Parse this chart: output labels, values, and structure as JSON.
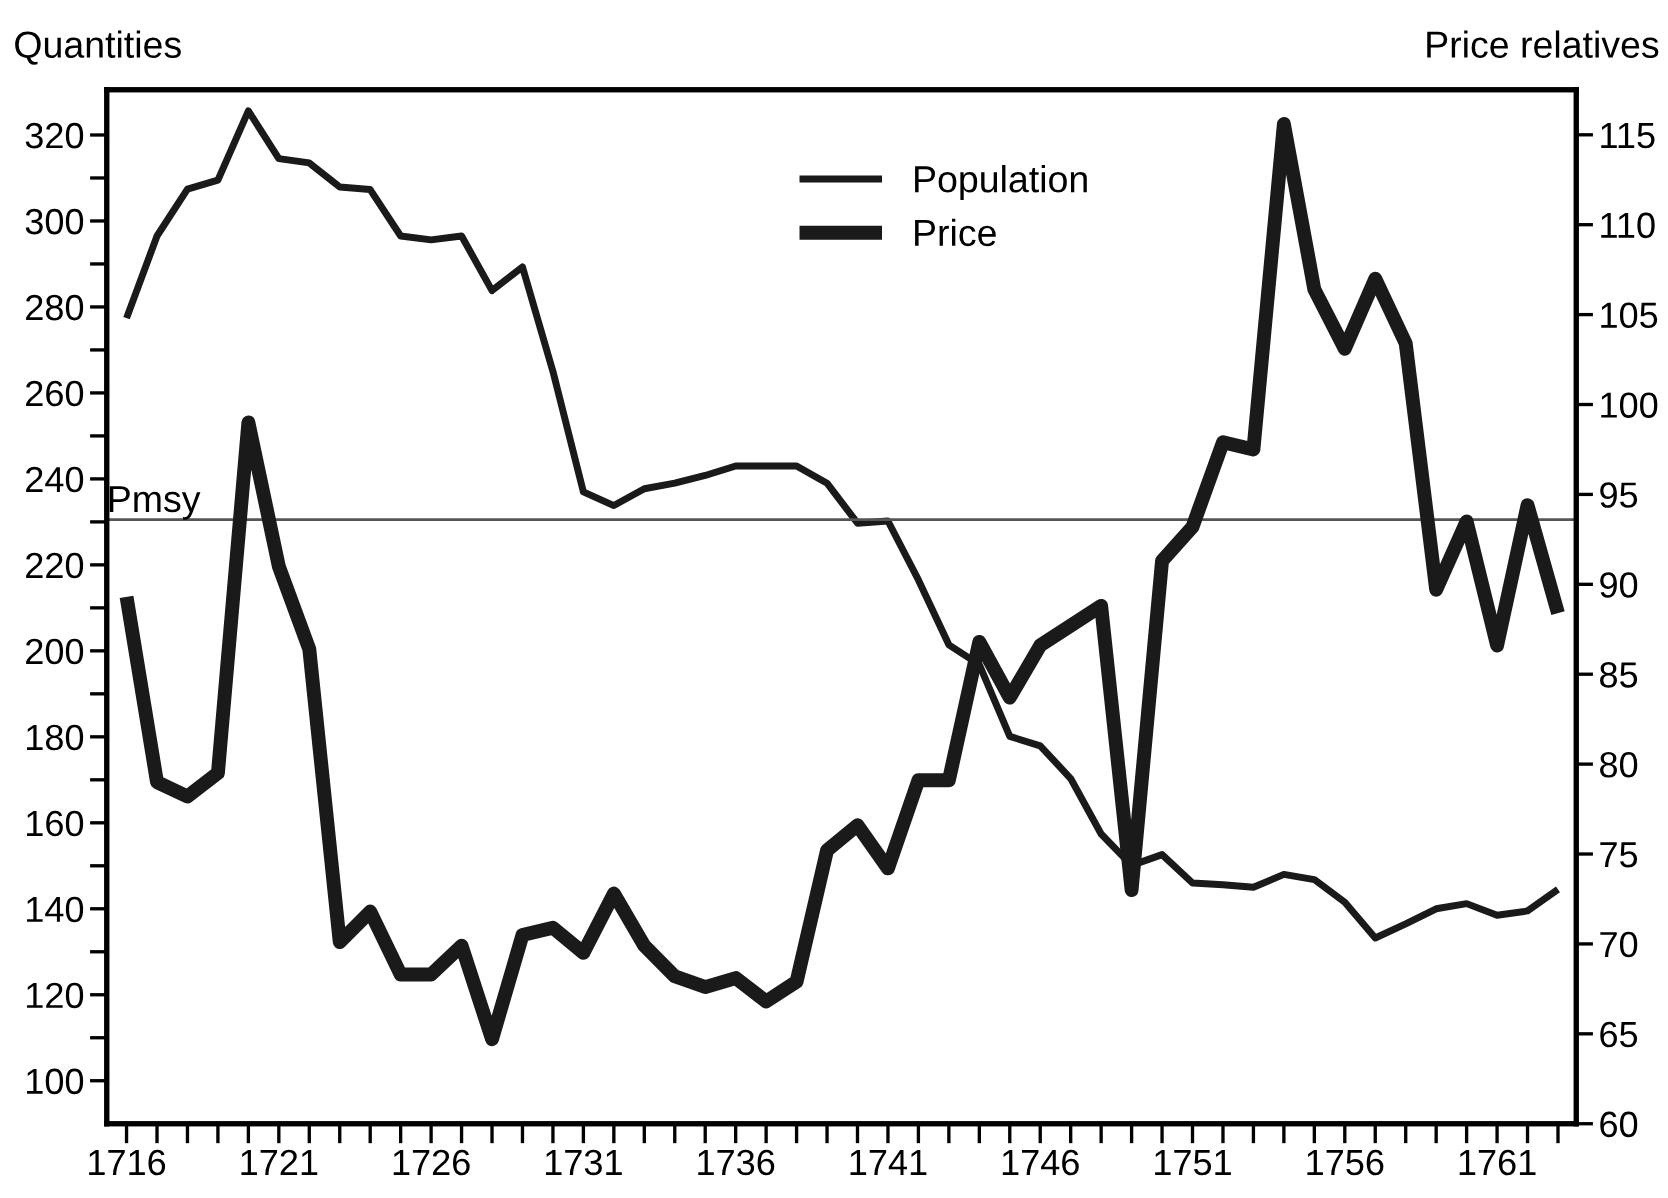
{
  "chart_data": {
    "type": "line",
    "ylabel": "Quantities",
    "y2label": "Price relatives",
    "x": [
      1716,
      1717,
      1718,
      1719,
      1720,
      1721,
      1722,
      1723,
      1724,
      1725,
      1726,
      1727,
      1728,
      1729,
      1730,
      1731,
      1732,
      1733,
      1734,
      1735,
      1736,
      1737,
      1738,
      1739,
      1740,
      1741,
      1742,
      1743,
      1744,
      1745,
      1746,
      1747,
      1748,
      1749,
      1750,
      1751,
      1752,
      1753,
      1754,
      1755,
      1756,
      1757,
      1758,
      1759,
      1760,
      1761,
      1762,
      1763
    ],
    "series": [
      {
        "name": "Population",
        "color": "#1a1a1a",
        "values": [
          277.4,
          296.5,
          307.4,
          309.5,
          325.6,
          314.5,
          313.5,
          307.9,
          307.3,
          296.5,
          295.6,
          296.5,
          283.8,
          289.3,
          265,
          237,
          233.8,
          237.7,
          239,
          240.8,
          243,
          243,
          243,
          239,
          229.7,
          230.2,
          216.5,
          201.4,
          196.8,
          180.1,
          177.9,
          170.3,
          157.4,
          150.1,
          152.6,
          146,
          145.6,
          145,
          148,
          146.8,
          141.5,
          133.2,
          136.5,
          140,
          141.2,
          138.5,
          139.5,
          144.5
        ]
      },
      {
        "name": "Price",
        "color": "#1a1a1a",
        "axis": "y2",
        "values": [
          89.3,
          79.0,
          78.2,
          79.5,
          99.0,
          91.0,
          86.4,
          70.1,
          71.8,
          68.3,
          68.3,
          69.9,
          64.7,
          70.5,
          70.9,
          69.5,
          72.8,
          69.9,
          68.2,
          67.6,
          68.1,
          66.8,
          67.9,
          75.2,
          76.6,
          74.2,
          79.1,
          79.1,
          86.8,
          83.7,
          86.6,
          87.7,
          88.8,
          73.0,
          91.3,
          93.2,
          97.9,
          97.5,
          115.6,
          106.4,
          103.1,
          107.0,
          103.4,
          89.7,
          93.5,
          86.6,
          94.4,
          88.4
        ]
      }
    ],
    "xlim": [
      1715.35,
      1763.6
    ],
    "xticks": [
      1716,
      {
        "value": 1717,
        "label": null
      },
      {
        "value": 1718,
        "label": null
      },
      {
        "value": 1719,
        "label": null
      },
      {
        "value": 1720,
        "label": null
      },
      1721,
      {
        "value": 1722,
        "label": null
      },
      {
        "value": 1723,
        "label": null
      },
      {
        "value": 1724,
        "label": null
      },
      {
        "value": 1725,
        "label": null
      },
      1726,
      {
        "value": 1727,
        "label": null
      },
      {
        "value": 1728,
        "label": null
      },
      {
        "value": 1729,
        "label": null
      },
      {
        "value": 1730,
        "label": null
      },
      1731,
      {
        "value": 1732,
        "label": null
      },
      {
        "value": 1733,
        "label": null
      },
      {
        "value": 1734,
        "label": null
      },
      {
        "value": 1735,
        "label": null
      },
      1736,
      {
        "value": 1737,
        "label": null
      },
      {
        "value": 1738,
        "label": null
      },
      {
        "value": 1739,
        "label": null
      },
      {
        "value": 1740,
        "label": null
      },
      1741,
      {
        "value": 1742,
        "label": null
      },
      {
        "value": 1743,
        "label": null
      },
      {
        "value": 1744,
        "label": null
      },
      {
        "value": 1745,
        "label": null
      },
      1746,
      {
        "value": 1747,
        "label": null
      },
      {
        "value": 1748,
        "label": null
      },
      {
        "value": 1749,
        "label": null
      },
      {
        "value": 1750,
        "label": null
      },
      1751,
      {
        "value": 1752,
        "label": null
      },
      {
        "value": 1753,
        "label": null
      },
      {
        "value": 1754,
        "label": null
      },
      {
        "value": 1755,
        "label": null
      },
      1756,
      {
        "value": 1757,
        "label": null
      },
      {
        "value": 1758,
        "label": null
      },
      {
        "value": 1759,
        "label": null
      },
      {
        "value": 1760,
        "label": null
      },
      1761,
      {
        "value": 1762,
        "label": null
      },
      {
        "value": 1763,
        "label": null
      }
    ],
    "ylim": [
      90,
      330.5
    ],
    "yticks": [
      100,
      {
        "value": 110,
        "label": null
      },
      120,
      {
        "value": 130,
        "label": null
      },
      140,
      {
        "value": 150,
        "label": null
      },
      160,
      {
        "value": 170,
        "label": null
      },
      180,
      {
        "value": 190,
        "label": null
      },
      200,
      {
        "value": 210,
        "label": null
      },
      220,
      {
        "value": 230,
        "label": null
      },
      240,
      {
        "value": 250,
        "label": null
      },
      260,
      {
        "value": 270,
        "label": null
      },
      280,
      {
        "value": 290,
        "label": null
      },
      300,
      {
        "value": 310,
        "label": null
      },
      320
    ],
    "y2lim": [
      60,
      117.5
    ],
    "y2ticks": [
      60,
      65,
      70,
      75,
      80,
      85,
      90,
      95,
      100,
      105,
      110,
      115
    ],
    "ref_lines": [
      {
        "axis": "y",
        "value": 230.5,
        "label": "Pmsy",
        "color": "#555555"
      }
    ],
    "legend": "top",
    "grid": false
  }
}
